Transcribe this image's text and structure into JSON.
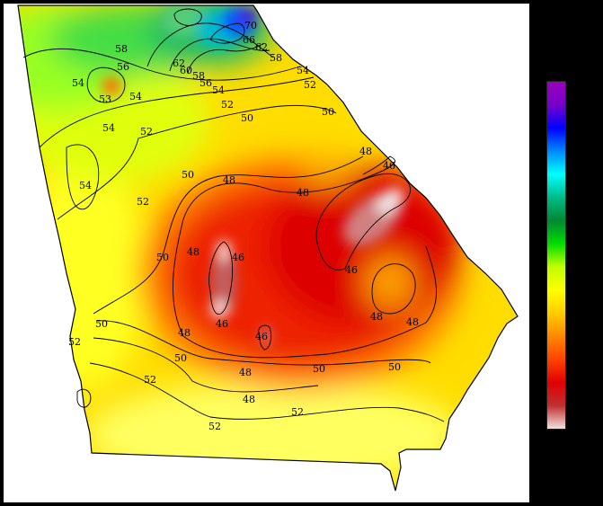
{
  "map": {
    "contour_labels": [
      {
        "text": "70"
      },
      {
        "text": "66"
      },
      {
        "text": "62"
      },
      {
        "text": "58"
      },
      {
        "text": "58"
      },
      {
        "text": "56"
      },
      {
        "text": "54"
      },
      {
        "text": "54"
      },
      {
        "text": "54"
      },
      {
        "text": "54"
      },
      {
        "text": "54"
      },
      {
        "text": "54"
      },
      {
        "text": "52"
      },
      {
        "text": "52"
      },
      {
        "text": "52"
      },
      {
        "text": "52"
      },
      {
        "text": "52"
      },
      {
        "text": "52"
      },
      {
        "text": "52"
      },
      {
        "text": "52"
      },
      {
        "text": "53"
      },
      {
        "text": "60"
      },
      {
        "text": "58"
      },
      {
        "text": "62"
      },
      {
        "text": "56"
      },
      {
        "text": "50"
      },
      {
        "text": "50"
      },
      {
        "text": "50"
      },
      {
        "text": "50"
      },
      {
        "text": "50"
      },
      {
        "text": "50"
      },
      {
        "text": "50"
      },
      {
        "text": "50"
      },
      {
        "text": "48"
      },
      {
        "text": "48"
      },
      {
        "text": "48"
      },
      {
        "text": "48"
      },
      {
        "text": "48"
      },
      {
        "text": "48"
      },
      {
        "text": "48"
      },
      {
        "text": "48"
      },
      {
        "text": "48"
      },
      {
        "text": "46"
      },
      {
        "text": "46"
      },
      {
        "text": "46"
      },
      {
        "text": "46"
      },
      {
        "text": "46"
      }
    ],
    "colorbar_stops": [
      "#f2e0e0",
      "#c03030",
      "#e00000",
      "#ff4400",
      "#ff8800",
      "#ffcc00",
      "#ffff00",
      "#c0ff00",
      "#00dd00",
      "#008833",
      "#00bb88",
      "#00ffff",
      "#0088ff",
      "#0000ff",
      "#7700cc",
      "#9900bb"
    ]
  }
}
